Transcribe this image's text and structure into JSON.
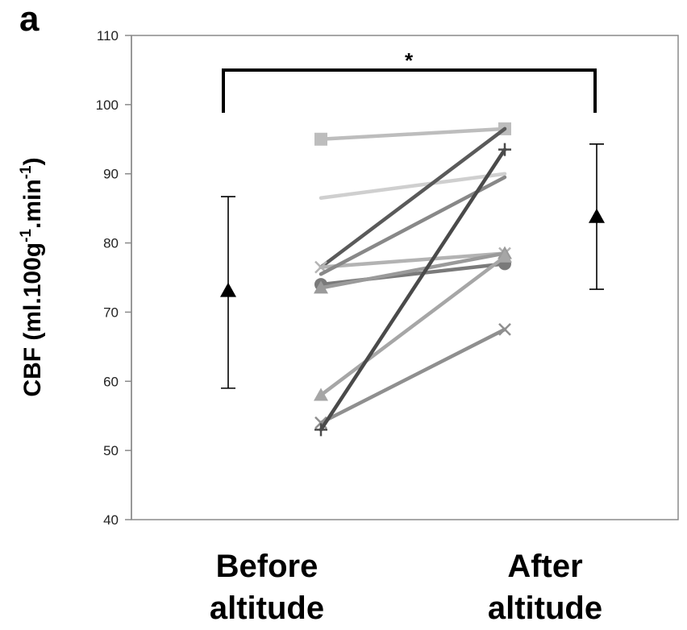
{
  "panel_label": "a",
  "chart_data": {
    "type": "line",
    "ylabel": {
      "base": "CBF (ml.100g",
      "sup1": "-1",
      "mid": ".min",
      "sup2": "-1",
      "end": ")"
    },
    "ylim": [
      40,
      110
    ],
    "yticks": [
      40,
      50,
      60,
      70,
      80,
      90,
      100,
      110
    ],
    "ytick_labels": [
      "40",
      "50",
      "60",
      "70",
      "80",
      "90",
      "100",
      "110"
    ],
    "grid": false,
    "categories": [
      {
        "line1": "Before",
        "line2": "altitude"
      },
      {
        "line1": "After",
        "line2": "altitude"
      }
    ],
    "significance": "*",
    "mean_sd": [
      {
        "mean": 73,
        "sd_low": 59,
        "sd_high": 86.7
      },
      {
        "mean": 83.7,
        "sd_low": 73.3,
        "sd_high": 94.3
      }
    ],
    "series": [
      {
        "values": [
          95,
          96.5
        ],
        "color": "#bdbdbd",
        "marker": "square"
      },
      {
        "values": [
          86.5,
          90
        ],
        "color": "#cfcfcf",
        "marker": "none"
      },
      {
        "values": [
          76.5,
          96.5
        ],
        "color": "#5a5a5a",
        "marker": "none"
      },
      {
        "values": [
          76.5,
          78.5
        ],
        "color": "#b3b3b3",
        "marker": "x"
      },
      {
        "values": [
          75.5,
          89.5
        ],
        "color": "#888888",
        "marker": "none"
      },
      {
        "values": [
          74,
          77
        ],
        "color": "#7a7a7a",
        "marker": "circle"
      },
      {
        "values": [
          73.5,
          78.5
        ],
        "color": "#9a9a9a",
        "marker": "triangle"
      },
      {
        "values": [
          58,
          78
        ],
        "color": "#a6a6a6",
        "marker": "triangle"
      },
      {
        "values": [
          54,
          67.5
        ],
        "color": "#8f8f8f",
        "marker": "x"
      },
      {
        "values": [
          53,
          93.5
        ],
        "color": "#4a4a4a",
        "marker": "plus"
      }
    ]
  }
}
